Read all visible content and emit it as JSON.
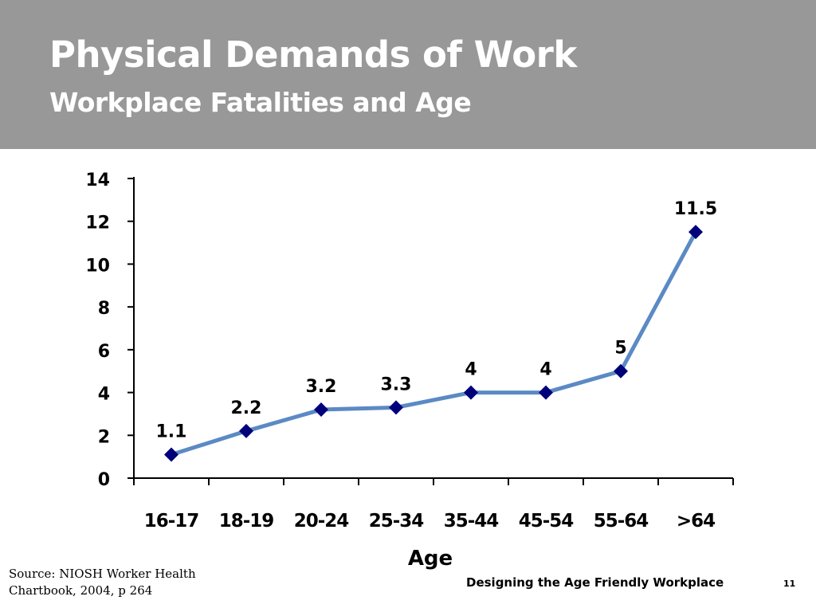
{
  "slide": {
    "title": "Physical Demands of Work",
    "subtitle": "Workplace Fatalities and Age",
    "source_line1": "Source: NIOSH Worker Health",
    "source_line2": "Chartbook, 2004, p 264",
    "footer": "Designing the Age Friendly Workplace",
    "page_number": "11"
  },
  "colors": {
    "header_band": "#989898",
    "line": "#5B8AC4",
    "marker": "#00007A"
  },
  "chart_data": {
    "type": "line",
    "categories": [
      "16-17",
      "18-19",
      "20-24",
      "25-34",
      "35-44",
      "45-54",
      "55-64",
      ">64"
    ],
    "series": [
      {
        "values": [
          1.1,
          2.2,
          3.2,
          3.3,
          4,
          4,
          5,
          11.5
        ],
        "data_labels": [
          "1.1",
          "2.2",
          "3.2",
          "3.3",
          "4",
          "4",
          "5",
          "11.5"
        ]
      }
    ],
    "yticks": [
      0,
      2,
      4,
      6,
      8,
      10,
      12,
      14
    ],
    "ylim": [
      0,
      14
    ],
    "xlabel": "Age",
    "ylabel": "",
    "grid": false,
    "legend": "none",
    "marker": "diamond"
  }
}
